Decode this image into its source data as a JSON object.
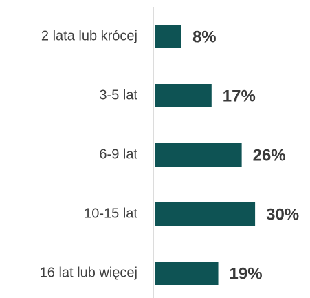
{
  "chart_data": {
    "type": "bar",
    "orientation": "horizontal",
    "categories": [
      "2 lata lub krócej",
      "3-5 lat",
      "6-9 lat",
      "10-15 lat",
      "16 lat lub więcej"
    ],
    "values": [
      8,
      17,
      26,
      30,
      19
    ],
    "value_labels": [
      "8%",
      "17%",
      "26%",
      "30%",
      "19%"
    ],
    "color": "#0e5354"
  }
}
